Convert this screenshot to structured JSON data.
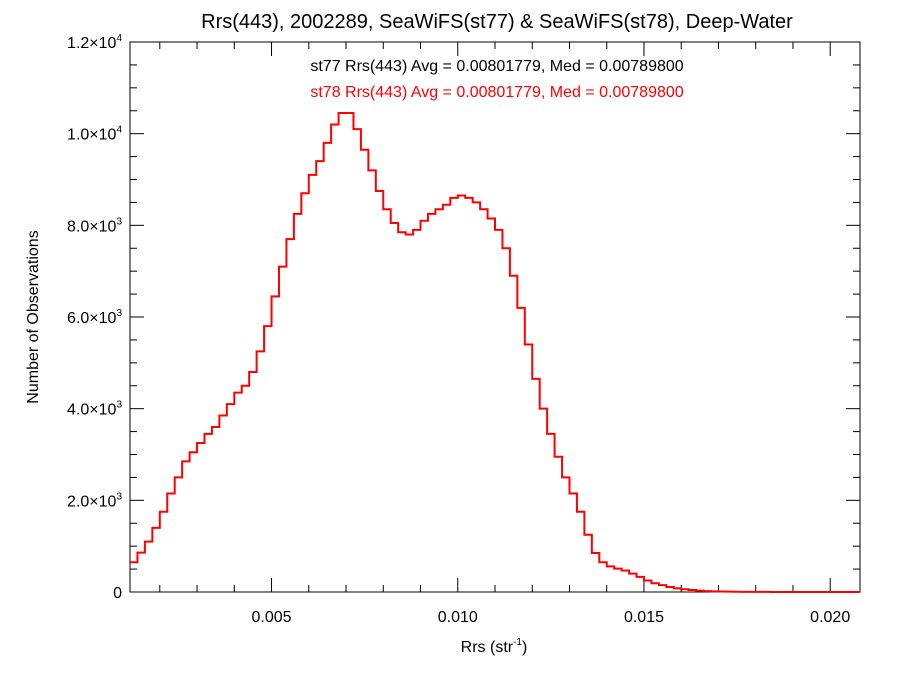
{
  "chart_data": {
    "type": "bar",
    "style": "step-histogram",
    "title": "Rrs(443), 2002289, SeaWiFS(st77) & SeaWiFS(st78), Deep-Water",
    "xlabel": "Rrs (str",
    "xlabel_sup": "-1",
    "xlabel_suffix": ")",
    "ylabel": "Number of Observations",
    "xlim": [
      0.0012,
      0.0208
    ],
    "ylim": [
      0,
      12000
    ],
    "grid": false,
    "x_ticks": [
      {
        "value": 0.005,
        "label": "0.005"
      },
      {
        "value": 0.01,
        "label": "0.010"
      },
      {
        "value": 0.015,
        "label": "0.015"
      },
      {
        "value": 0.02,
        "label": "0.020"
      }
    ],
    "y_ticks": [
      {
        "value": 0,
        "label": "0",
        "exp": ""
      },
      {
        "value": 2000,
        "label": "2.0×10",
        "exp": "3"
      },
      {
        "value": 4000,
        "label": "4.0×10",
        "exp": "3"
      },
      {
        "value": 6000,
        "label": "6.0×10",
        "exp": "3"
      },
      {
        "value": 8000,
        "label": "8.0×10",
        "exp": "3"
      },
      {
        "value": 10000,
        "label": "1.0×10",
        "exp": "4"
      },
      {
        "value": 12000,
        "label": "1.2×10",
        "exp": "4"
      }
    ],
    "annotations": [
      {
        "text": "st77 Rrs(443) Avg = 0.00801779, Med = 0.00789800",
        "color": "#000000"
      },
      {
        "text": "st78 Rrs(443) Avg = 0.00801779, Med = 0.00789800",
        "color": "#ff0000"
      }
    ],
    "series": [
      {
        "color": "#ff0000",
        "x": [
          0.0012,
          0.0014,
          0.0016,
          0.0018,
          0.002,
          0.0022,
          0.0024,
          0.0026,
          0.0028,
          0.003,
          0.0032,
          0.0034,
          0.0036,
          0.0038,
          0.004,
          0.0042,
          0.0044,
          0.0046,
          0.0048,
          0.005,
          0.0052,
          0.0054,
          0.0056,
          0.0058,
          0.006,
          0.0062,
          0.0064,
          0.0066,
          0.0068,
          0.007,
          0.0072,
          0.0074,
          0.0076,
          0.0078,
          0.008,
          0.0082,
          0.0084,
          0.0086,
          0.0088,
          0.009,
          0.0092,
          0.0094,
          0.0096,
          0.0098,
          0.01,
          0.0102,
          0.0104,
          0.0106,
          0.0108,
          0.011,
          0.0112,
          0.0114,
          0.0116,
          0.0118,
          0.012,
          0.0122,
          0.0124,
          0.0126,
          0.0128,
          0.013,
          0.0132,
          0.0134,
          0.0136,
          0.0138,
          0.014,
          0.0142,
          0.0144,
          0.0146,
          0.0148,
          0.015,
          0.0152,
          0.0154,
          0.0156,
          0.0158,
          0.016,
          0.0162,
          0.0164,
          0.0166,
          0.0168,
          0.017,
          0.0172,
          0.0174,
          0.0176,
          0.0178,
          0.018,
          0.0182,
          0.0184,
          0.0186,
          0.0188,
          0.019,
          0.0192,
          0.0194,
          0.0196,
          0.0198,
          0.02,
          0.0202,
          0.0204,
          0.0206
        ],
        "values": [
          650,
          860,
          1100,
          1400,
          1750,
          2150,
          2500,
          2850,
          3050,
          3250,
          3450,
          3600,
          3850,
          4100,
          4350,
          4500,
          4800,
          5250,
          5800,
          6450,
          7100,
          7700,
          8250,
          8700,
          9100,
          9400,
          9800,
          10200,
          10450,
          10450,
          10100,
          9650,
          9200,
          8750,
          8350,
          8050,
          7850,
          7800,
          7900,
          8100,
          8250,
          8350,
          8450,
          8600,
          8650,
          8600,
          8500,
          8350,
          8150,
          7900,
          7500,
          6900,
          6200,
          5400,
          4650,
          4000,
          3450,
          2950,
          2500,
          2150,
          1750,
          1250,
          850,
          650,
          560,
          510,
          470,
          400,
          330,
          250,
          190,
          150,
          110,
          80,
          60,
          45,
          30,
          20,
          15,
          10,
          8,
          5,
          4,
          3,
          2,
          2,
          1,
          1,
          1,
          1,
          1,
          0,
          0,
          0,
          0,
          0,
          0,
          0
        ]
      }
    ]
  }
}
